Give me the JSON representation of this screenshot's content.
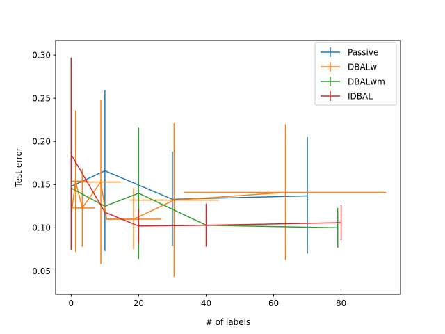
{
  "chart_data": {
    "type": "line",
    "xlabel": "# of labels",
    "ylabel": "Test error",
    "xlim": [
      -4.6,
      97.6
    ],
    "ylim": [
      0.023,
      0.317
    ],
    "xticks": [
      0,
      20,
      40,
      60,
      80
    ],
    "yticks": [
      0.05,
      0.1,
      0.15,
      0.2,
      0.25,
      0.3
    ],
    "xtick_labels": [
      "0",
      "20",
      "40",
      "60",
      "80"
    ],
    "ytick_labels": [
      "0.05",
      "0.10",
      "0.15",
      "0.20",
      "0.25",
      "0.30"
    ],
    "legend_position": "top-right",
    "series": [
      {
        "name": "Passive",
        "color": "#1f77b4",
        "points": [
          {
            "x": 0,
            "y": 0.148,
            "yerr": [
              0.121,
              0.148
            ]
          },
          {
            "x": 10,
            "y": 0.166,
            "yerr": [
              0.073,
              0.259
            ]
          },
          {
            "x": 30,
            "y": 0.133,
            "yerr": [
              0.079,
              0.188
            ]
          },
          {
            "x": 70,
            "y": 0.137,
            "yerr": [
              0.07,
              0.205
            ]
          }
        ]
      },
      {
        "name": "DBALw",
        "color": "#ff7f0e",
        "points": [
          {
            "x": 0.3,
            "y": 0.123,
            "xerr": [
              0,
              0
            ],
            "yerr": [
              0.123,
              0.123
            ]
          },
          {
            "x": 1.3,
            "y": 0.154,
            "xerr": [
              0,
              4.8
            ],
            "yerr": [
              0.072,
              0.236
            ]
          },
          {
            "x": 3.3,
            "y": 0.123,
            "xerr": [
              0,
              7.0
            ],
            "yerr": [
              0.078,
              0.168
            ]
          },
          {
            "x": 8.8,
            "y": 0.153,
            "xerr": [
              2.8,
              14.8
            ],
            "yerr": [
              0.058,
              0.248
            ]
          },
          {
            "x": 10.5,
            "y": 0.11,
            "xerr": [
              10.5,
              26.8
            ],
            "yerr": [
              0.11,
              0.11
            ]
          },
          {
            "x": 18.5,
            "y": 0.11,
            "xerr": [
              18.5,
              18.5
            ],
            "yerr": [
              0.075,
              0.146
            ]
          },
          {
            "x": 30.5,
            "y": 0.132,
            "xerr": [
              17.3,
              43.8
            ],
            "yerr": [
              0.043,
              0.221
            ]
          },
          {
            "x": 63.5,
            "y": 0.141,
            "xerr": [
              33.3,
              93.3
            ],
            "yerr": [
              0.063,
              0.22
            ]
          }
        ]
      },
      {
        "name": "DBALwm",
        "color": "#2ca02c",
        "points": [
          {
            "x": 0,
            "y": 0.146,
            "yerr": [
              0.146,
              0.146
            ]
          },
          {
            "x": 10,
            "y": 0.125,
            "yerr": [
              0.125,
              0.125
            ]
          },
          {
            "x": 20,
            "y": 0.14,
            "yerr": [
              0.064,
              0.216
            ]
          },
          {
            "x": 40,
            "y": 0.103,
            "yerr": [
              0.103,
              0.103
            ]
          },
          {
            "x": 79,
            "y": 0.1,
            "yerr": [
              0.077,
              0.123
            ]
          }
        ]
      },
      {
        "name": "IDBAL",
        "color": "#d62728",
        "points": [
          {
            "x": 0,
            "y": 0.185,
            "yerr": [
              0.074,
              0.297
            ]
          },
          {
            "x": 10,
            "y": 0.118,
            "yerr": [
              0.118,
              0.118
            ]
          },
          {
            "x": 20,
            "y": 0.102,
            "yerr": [
              0.082,
              0.122
            ]
          },
          {
            "x": 40,
            "y": 0.103,
            "yerr": [
              0.078,
              0.128
            ]
          },
          {
            "x": 80,
            "y": 0.106,
            "yerr": [
              0.086,
              0.126
            ]
          }
        ]
      }
    ]
  }
}
